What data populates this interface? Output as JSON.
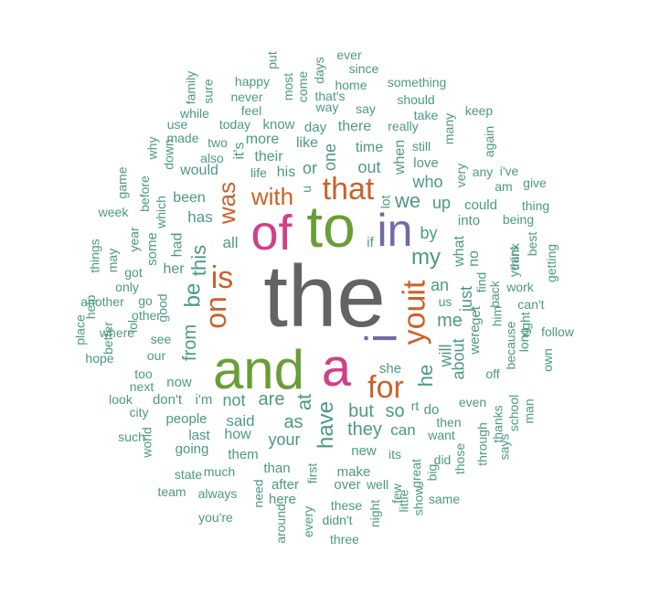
{
  "palette": {
    "gray": "#636363",
    "green": "#6a9d37",
    "orange": "#cc6127",
    "purple": "#7568a9",
    "pink": "#d23f86",
    "teal": "#4c9a7d"
  },
  "words": [
    {
      "t": "the",
      "c": "gray",
      "s": 96
    },
    {
      "t": "and",
      "c": "green",
      "s": 60
    },
    {
      "t": "to",
      "c": "green",
      "s": 64
    },
    {
      "t": "of",
      "c": "pink",
      "s": 54
    },
    {
      "t": "a",
      "c": "pink",
      "s": 58
    },
    {
      "t": "in",
      "c": "purple",
      "s": 50
    },
    {
      "t": "i",
      "c": "purple",
      "s": 48
    },
    {
      "t": "that",
      "c": "orange",
      "s": 34
    },
    {
      "t": "is",
      "c": "orange",
      "s": 34
    },
    {
      "t": "for",
      "c": "orange",
      "s": 34
    },
    {
      "t": "it",
      "c": "orange",
      "s": 34
    },
    {
      "t": "you",
      "c": "orange",
      "s": 34
    },
    {
      "t": "on",
      "c": "orange",
      "s": 32
    },
    {
      "t": "was",
      "c": "orange",
      "s": 26
    },
    {
      "t": "with",
      "c": "orange",
      "s": 26
    },
    {
      "t": "my",
      "c": "teal",
      "s": 24
    },
    {
      "t": "be",
      "c": "teal",
      "s": 24
    },
    {
      "t": "have",
      "c": "teal",
      "s": 24
    },
    {
      "t": "this",
      "c": "teal",
      "s": 22
    },
    {
      "t": "at",
      "c": "teal",
      "s": 22
    },
    {
      "t": "he",
      "c": "teal",
      "s": 22
    },
    {
      "t": "we",
      "c": "teal",
      "s": 22
    },
    {
      "t": "me",
      "c": "teal",
      "s": 20
    },
    {
      "t": "but",
      "c": "teal",
      "s": 20
    },
    {
      "t": "from",
      "c": "teal",
      "s": 20
    },
    {
      "t": "are",
      "c": "teal",
      "s": 20
    },
    {
      "t": "as",
      "c": "teal",
      "s": 20
    },
    {
      "t": "so",
      "c": "teal",
      "s": 20
    },
    {
      "t": "they",
      "c": "teal",
      "s": 20
    },
    {
      "t": "your",
      "c": "teal",
      "s": 18
    },
    {
      "t": "who",
      "c": "teal",
      "s": 18
    },
    {
      "t": "an",
      "c": "teal",
      "s": 18
    },
    {
      "t": "up",
      "c": "teal",
      "s": 18
    },
    {
      "t": "by",
      "c": "teal",
      "s": 18
    },
    {
      "t": "about",
      "c": "teal",
      "s": 18
    },
    {
      "t": "will",
      "c": "teal",
      "s": 18
    },
    {
      "t": "just",
      "c": "teal",
      "s": 18
    },
    {
      "t": "out",
      "c": "teal",
      "s": 18
    },
    {
      "t": "or",
      "c": "teal",
      "s": 18
    },
    {
      "t": "one",
      "c": "teal",
      "s": 18
    },
    {
      "t": "not",
      "c": "teal",
      "s": 18
    },
    {
      "t": "said",
      "c": "teal",
      "s": 17
    },
    {
      "t": "can",
      "c": "teal",
      "s": 17
    },
    {
      "t": "all",
      "c": "teal",
      "s": 17
    },
    {
      "t": "has",
      "c": "teal",
      "s": 17
    },
    {
      "t": "had",
      "c": "teal",
      "s": 16
    },
    {
      "t": "her",
      "c": "teal",
      "s": 16
    },
    {
      "t": "his",
      "c": "teal",
      "s": 16
    },
    {
      "t": "like",
      "c": "teal",
      "s": 16
    },
    {
      "t": "time",
      "c": "teal",
      "s": 16
    },
    {
      "t": "more",
      "c": "teal",
      "s": 16
    },
    {
      "t": "when",
      "c": "teal",
      "s": 16
    },
    {
      "t": "there",
      "c": "teal",
      "s": 16
    },
    {
      "t": "what",
      "c": "teal",
      "s": 16
    },
    {
      "t": "no",
      "c": "teal",
      "s": 16
    },
    {
      "t": "would",
      "c": "teal",
      "s": 16
    },
    {
      "t": "been",
      "c": "teal",
      "s": 16
    },
    {
      "t": "it's",
      "c": "teal",
      "s": 16
    },
    {
      "t": "their",
      "c": "teal",
      "s": 16
    },
    {
      "t": "how",
      "c": "teal",
      "s": 16
    },
    {
      "t": "people",
      "c": "teal",
      "s": 15
    },
    {
      "t": "them",
      "c": "teal",
      "s": 15
    },
    {
      "t": "she",
      "c": "teal",
      "s": 15
    },
    {
      "t": "new",
      "c": "teal",
      "s": 15
    },
    {
      "t": "do",
      "c": "teal",
      "s": 15
    },
    {
      "t": "were",
      "c": "teal",
      "s": 15
    },
    {
      "t": "get",
      "c": "teal",
      "s": 15
    },
    {
      "t": "love",
      "c": "teal",
      "s": 15
    },
    {
      "t": "into",
      "c": "teal",
      "s": 15
    },
    {
      "t": "could",
      "c": "teal",
      "s": 15
    },
    {
      "t": "know",
      "c": "teal",
      "s": 15
    },
    {
      "t": "day",
      "c": "teal",
      "s": 15
    },
    {
      "t": "now",
      "c": "teal",
      "s": 15
    },
    {
      "t": "don't",
      "c": "teal",
      "s": 15
    },
    {
      "t": "i'm",
      "c": "teal",
      "s": 15
    },
    {
      "t": "last",
      "c": "teal",
      "s": 15
    },
    {
      "t": "going",
      "c": "teal",
      "s": 15
    },
    {
      "t": "than",
      "c": "teal",
      "s": 15
    },
    {
      "t": "after",
      "c": "teal",
      "s": 15
    },
    {
      "t": "make",
      "c": "teal",
      "s": 15
    },
    {
      "t": "over",
      "c": "teal",
      "s": 15
    },
    {
      "t": "here",
      "c": "teal",
      "s": 15
    },
    {
      "t": "if",
      "c": "teal",
      "s": 15
    },
    {
      "t": "some",
      "c": "teal",
      "s": 15
    },
    {
      "t": "good",
      "c": "teal",
      "s": 14
    },
    {
      "t": "other",
      "c": "teal",
      "s": 14
    },
    {
      "t": "our",
      "c": "teal",
      "s": 14
    },
    {
      "t": "see",
      "c": "teal",
      "s": 14
    },
    {
      "t": "also",
      "c": "teal",
      "s": 14
    },
    {
      "t": "two",
      "c": "teal",
      "s": 14
    },
    {
      "t": "today",
      "c": "teal",
      "s": 14
    },
    {
      "t": "life",
      "c": "teal",
      "s": 14
    },
    {
      "t": "really",
      "c": "teal",
      "s": 14
    },
    {
      "t": "still",
      "c": "teal",
      "s": 14
    },
    {
      "t": "want",
      "c": "teal",
      "s": 14
    },
    {
      "t": "then",
      "c": "teal",
      "s": 14
    },
    {
      "t": "even",
      "c": "teal",
      "s": 14
    },
    {
      "t": "its",
      "c": "teal",
      "s": 14
    },
    {
      "t": "back",
      "c": "teal",
      "s": 14
    },
    {
      "t": "him",
      "c": "teal",
      "s": 14
    },
    {
      "t": "us",
      "c": "teal",
      "s": 14
    },
    {
      "t": "being",
      "c": "teal",
      "s": 14
    },
    {
      "t": "think",
      "c": "teal",
      "s": 14
    },
    {
      "t": "work",
      "c": "teal",
      "s": 14
    },
    {
      "t": "years",
      "c": "teal",
      "s": 14
    },
    {
      "t": "say",
      "c": "teal",
      "s": 14
    },
    {
      "t": "take",
      "c": "teal",
      "s": 14
    },
    {
      "t": "should",
      "c": "teal",
      "s": 14
    },
    {
      "t": "way",
      "c": "teal",
      "s": 14
    },
    {
      "t": "home",
      "c": "teal",
      "s": 14
    },
    {
      "t": "that's",
      "c": "teal",
      "s": 14
    },
    {
      "t": "something",
      "c": "teal",
      "s": 14
    },
    {
      "t": "since",
      "c": "teal",
      "s": 14
    },
    {
      "t": "ever",
      "c": "teal",
      "s": 14
    },
    {
      "t": "days",
      "c": "teal",
      "s": 14
    },
    {
      "t": "come",
      "c": "teal",
      "s": 14
    },
    {
      "t": "most",
      "c": "teal",
      "s": 14
    },
    {
      "t": "put",
      "c": "teal",
      "s": 14
    },
    {
      "t": "happy",
      "c": "teal",
      "s": 14
    },
    {
      "t": "never",
      "c": "teal",
      "s": 14
    },
    {
      "t": "feel",
      "c": "teal",
      "s": 14
    },
    {
      "t": "sure",
      "c": "teal",
      "s": 14
    },
    {
      "t": "family",
      "c": "teal",
      "s": 14
    },
    {
      "t": "while",
      "c": "teal",
      "s": 14
    },
    {
      "t": "use",
      "c": "teal",
      "s": 14
    },
    {
      "t": "made",
      "c": "teal",
      "s": 14
    },
    {
      "t": "why",
      "c": "teal",
      "s": 14
    },
    {
      "t": "down",
      "c": "teal",
      "s": 14
    },
    {
      "t": "which",
      "c": "teal",
      "s": 14
    },
    {
      "t": "before",
      "c": "teal",
      "s": 14
    },
    {
      "t": "game",
      "c": "teal",
      "s": 14
    },
    {
      "t": "week",
      "c": "teal",
      "s": 14
    },
    {
      "t": "year",
      "c": "teal",
      "s": 14
    },
    {
      "t": "got",
      "c": "teal",
      "s": 14
    },
    {
      "t": "may",
      "c": "teal",
      "s": 14
    },
    {
      "t": "things",
      "c": "teal",
      "s": 14
    },
    {
      "t": "only",
      "c": "teal",
      "s": 14
    },
    {
      "t": "another",
      "c": "teal",
      "s": 14
    },
    {
      "t": "help",
      "c": "teal",
      "s": 14
    },
    {
      "t": "go",
      "c": "teal",
      "s": 14
    },
    {
      "t": "lol",
      "c": "teal",
      "s": 14
    },
    {
      "t": "where",
      "c": "teal",
      "s": 14
    },
    {
      "t": "better",
      "c": "teal",
      "s": 14
    },
    {
      "t": "place",
      "c": "teal",
      "s": 14
    },
    {
      "t": "hope",
      "c": "teal",
      "s": 14
    },
    {
      "t": "too",
      "c": "teal",
      "s": 14
    },
    {
      "t": "next",
      "c": "teal",
      "s": 14
    },
    {
      "t": "look",
      "c": "teal",
      "s": 14
    },
    {
      "t": "city",
      "c": "teal",
      "s": 14
    },
    {
      "t": "much",
      "c": "teal",
      "s": 14
    },
    {
      "t": "such",
      "c": "teal",
      "s": 14
    },
    {
      "t": "world",
      "c": "teal",
      "s": 14
    },
    {
      "t": "state",
      "c": "teal",
      "s": 14
    },
    {
      "t": "team",
      "c": "teal",
      "s": 14
    },
    {
      "t": "always",
      "c": "teal",
      "s": 14
    },
    {
      "t": "need",
      "c": "teal",
      "s": 14
    },
    {
      "t": "around",
      "c": "teal",
      "s": 14
    },
    {
      "t": "every",
      "c": "teal",
      "s": 14
    },
    {
      "t": "first",
      "c": "teal",
      "s": 14
    },
    {
      "t": "these",
      "c": "teal",
      "s": 14
    },
    {
      "t": "didn't",
      "c": "teal",
      "s": 14
    },
    {
      "t": "you're",
      "c": "teal",
      "s": 14
    },
    {
      "t": "three",
      "c": "teal",
      "s": 14
    },
    {
      "t": "night",
      "c": "teal",
      "s": 14
    },
    {
      "t": "few",
      "c": "teal",
      "s": 14
    },
    {
      "t": "little",
      "c": "teal",
      "s": 14
    },
    {
      "t": "show",
      "c": "teal",
      "s": 14
    },
    {
      "t": "great",
      "c": "teal",
      "s": 14
    },
    {
      "t": "big",
      "c": "teal",
      "s": 14
    },
    {
      "t": "well",
      "c": "teal",
      "s": 14
    },
    {
      "t": "did",
      "c": "teal",
      "s": 14
    },
    {
      "t": "same",
      "c": "teal",
      "s": 14
    },
    {
      "t": "those",
      "c": "teal",
      "s": 14
    },
    {
      "t": "through",
      "c": "teal",
      "s": 14
    },
    {
      "t": "says",
      "c": "teal",
      "s": 14
    },
    {
      "t": "thanks",
      "c": "teal",
      "s": 14
    },
    {
      "t": "school",
      "c": "teal",
      "s": 14
    },
    {
      "t": "man",
      "c": "teal",
      "s": 14
    },
    {
      "t": "off",
      "c": "teal",
      "s": 14
    },
    {
      "t": "because",
      "c": "teal",
      "s": 14
    },
    {
      "t": "long",
      "c": "teal",
      "s": 14
    },
    {
      "t": "right",
      "c": "teal",
      "s": 14
    },
    {
      "t": "own",
      "c": "teal",
      "s": 14
    },
    {
      "t": "follow",
      "c": "teal",
      "s": 14
    },
    {
      "t": "can't",
      "c": "teal",
      "s": 14
    },
    {
      "t": "getting",
      "c": "teal",
      "s": 14
    },
    {
      "t": "best",
      "c": "teal",
      "s": 14
    },
    {
      "t": "thing",
      "c": "teal",
      "s": 14
    },
    {
      "t": "give",
      "c": "teal",
      "s": 14
    },
    {
      "t": "i've",
      "c": "teal",
      "s": 14
    },
    {
      "t": "am",
      "c": "teal",
      "s": 14
    },
    {
      "t": "any",
      "c": "teal",
      "s": 14
    },
    {
      "t": "very",
      "c": "teal",
      "s": 14
    },
    {
      "t": "again",
      "c": "teal",
      "s": 14
    },
    {
      "t": "keep",
      "c": "teal",
      "s": 14
    },
    {
      "t": "many",
      "c": "teal",
      "s": 14
    },
    {
      "t": "find",
      "c": "teal",
      "s": 14
    },
    {
      "t": "rt",
      "c": "teal",
      "s": 14
    },
    {
      "t": "lot",
      "c": "teal",
      "s": 14
    },
    {
      "t": "u",
      "c": "teal",
      "s": 14
    }
  ]
}
